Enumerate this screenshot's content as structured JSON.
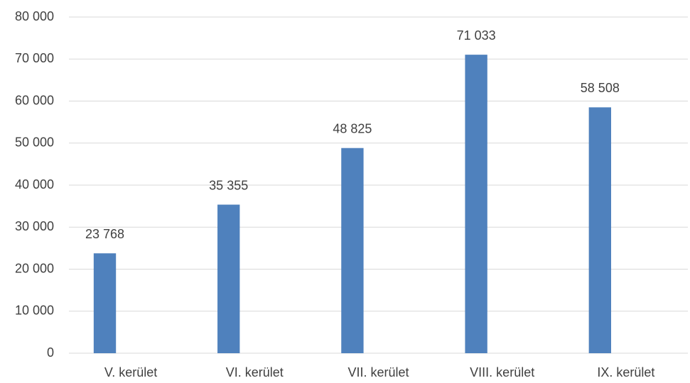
{
  "chart_data": {
    "type": "bar",
    "categories": [
      "V. kerület",
      "VI. kerület",
      "VII. kerület",
      "VIII. kerület",
      "IX. kerület"
    ],
    "values": [
      23768,
      35355,
      48825,
      71033,
      58508
    ],
    "value_labels": [
      "23 768",
      "35 355",
      "48 825",
      "71 033",
      "58 508"
    ],
    "color": "#4f81bd",
    "ylim": [
      0,
      80000
    ],
    "yticks": [
      0,
      {
        "value": 10000,
        "label": "10 000"
      },
      {
        "value": 20000,
        "label": "20 000"
      },
      {
        "value": 30000,
        "label": "30 000"
      },
      {
        "value": 40000,
        "label": "40 000"
      },
      {
        "value": 50000,
        "label": "50 000"
      },
      {
        "value": 60000,
        "label": "60 000"
      },
      {
        "value": 70000,
        "label": "70 000"
      },
      {
        "value": 80000,
        "label": "80 000"
      }
    ],
    "grid": true
  }
}
